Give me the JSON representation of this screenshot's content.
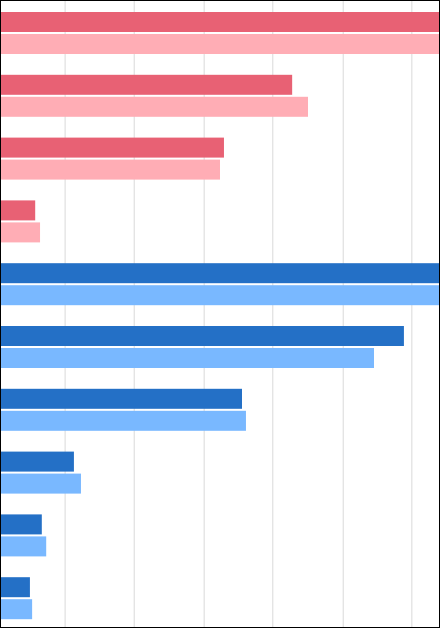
{
  "chart_data": {
    "type": "hbar",
    "categories": [
      null,
      null,
      null,
      null,
      null,
      null,
      null,
      null,
      null,
      null
    ],
    "series": [
      {
        "color": "#e86174",
        "values": [
          100,
          66.4,
          50.9,
          8,
          null,
          null,
          null,
          null,
          null,
          null
        ]
      },
      {
        "color": "#ffadb5",
        "values": [
          100,
          70,
          50,
          9.1,
          null,
          null,
          null,
          null,
          null,
          null
        ]
      },
      {
        "color": "#2470c6",
        "values": [
          null,
          null,
          null,
          null,
          100,
          91.8,
          55,
          16.8,
          9.5,
          6.8
        ]
      },
      {
        "color": "#79b8ff",
        "values": [
          null,
          null,
          null,
          null,
          100,
          85,
          55.9,
          18.4,
          10.5,
          7.3
        ]
      }
    ],
    "xlim": [
      0,
      100
    ],
    "xticks": [
      14.8,
      30.5,
      46.4,
      62,
      78,
      93.6
    ],
    "grid": true
  }
}
